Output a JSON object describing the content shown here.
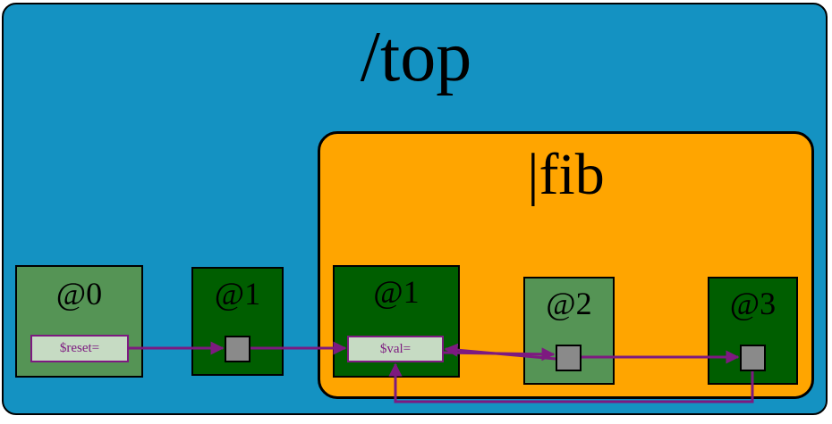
{
  "colors": {
    "top_fill": "#1492c2",
    "fib_fill": "#ffa500",
    "stage_light": "#559455",
    "stage_dark": "#005e00",
    "signal_fill": "#c6dbc3",
    "wire": "#7d1a80",
    "port": "#8a8a8a"
  },
  "top": {
    "title": "/top"
  },
  "fib": {
    "title": "|fib"
  },
  "stages": [
    {
      "label": "@0",
      "shade": "light"
    },
    {
      "label": "@1",
      "shade": "dark"
    },
    {
      "label": "@1",
      "shade": "dark"
    },
    {
      "label": "@2",
      "shade": "light"
    },
    {
      "label": "@3",
      "shade": "dark"
    }
  ],
  "signals": {
    "reset": "$reset=",
    "val": "$val="
  }
}
